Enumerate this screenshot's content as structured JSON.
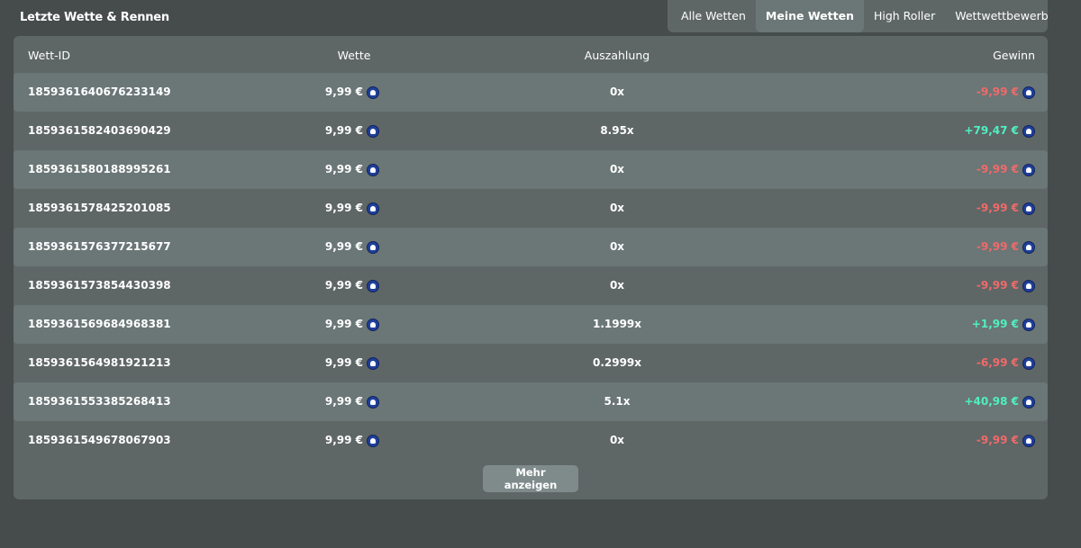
{
  "title": "Letzte Wette & Rennen",
  "tabs": [
    {
      "label": "Alle Wetten",
      "active": false
    },
    {
      "label": "Meine Wetten",
      "active": true
    },
    {
      "label": "High Roller",
      "active": false
    },
    {
      "label": "Wettwettbewerb",
      "active": false
    }
  ],
  "table": {
    "headers": {
      "id": "Wett-ID",
      "bet": "Wette",
      "payout": "Auszahlung",
      "win": "Gewinn"
    },
    "currency_icon": "coin-icon",
    "colors": {
      "loss": "#f06a6a",
      "gain": "#4ff0c0"
    },
    "rows": [
      {
        "id": "1859361640676233149",
        "bet": "9,99 €",
        "payout": "0x",
        "win": "-9,99 €",
        "positive": false
      },
      {
        "id": "1859361582403690429",
        "bet": "9,99 €",
        "payout": "8.95x",
        "win": "+79,47 €",
        "positive": true
      },
      {
        "id": "1859361580188995261",
        "bet": "9,99 €",
        "payout": "0x",
        "win": "-9,99 €",
        "positive": false
      },
      {
        "id": "1859361578425201085",
        "bet": "9,99 €",
        "payout": "0x",
        "win": "-9,99 €",
        "positive": false
      },
      {
        "id": "1859361576377215677",
        "bet": "9,99 €",
        "payout": "0x",
        "win": "-9,99 €",
        "positive": false
      },
      {
        "id": "1859361573854430398",
        "bet": "9,99 €",
        "payout": "0x",
        "win": "-9,99 €",
        "positive": false
      },
      {
        "id": "1859361569684968381",
        "bet": "9,99 €",
        "payout": "1.1999x",
        "win": "+1,99 €",
        "positive": true
      },
      {
        "id": "1859361564981921213",
        "bet": "9,99 €",
        "payout": "0.2999x",
        "win": "-6,99 €",
        "positive": false
      },
      {
        "id": "1859361553385268413",
        "bet": "9,99 €",
        "payout": "5.1x",
        "win": "+40,98 €",
        "positive": true
      },
      {
        "id": "1859361549678067903",
        "bet": "9,99 €",
        "payout": "0x",
        "win": "-9,99 €",
        "positive": false
      }
    ]
  },
  "more_button": "Mehr anzeigen"
}
